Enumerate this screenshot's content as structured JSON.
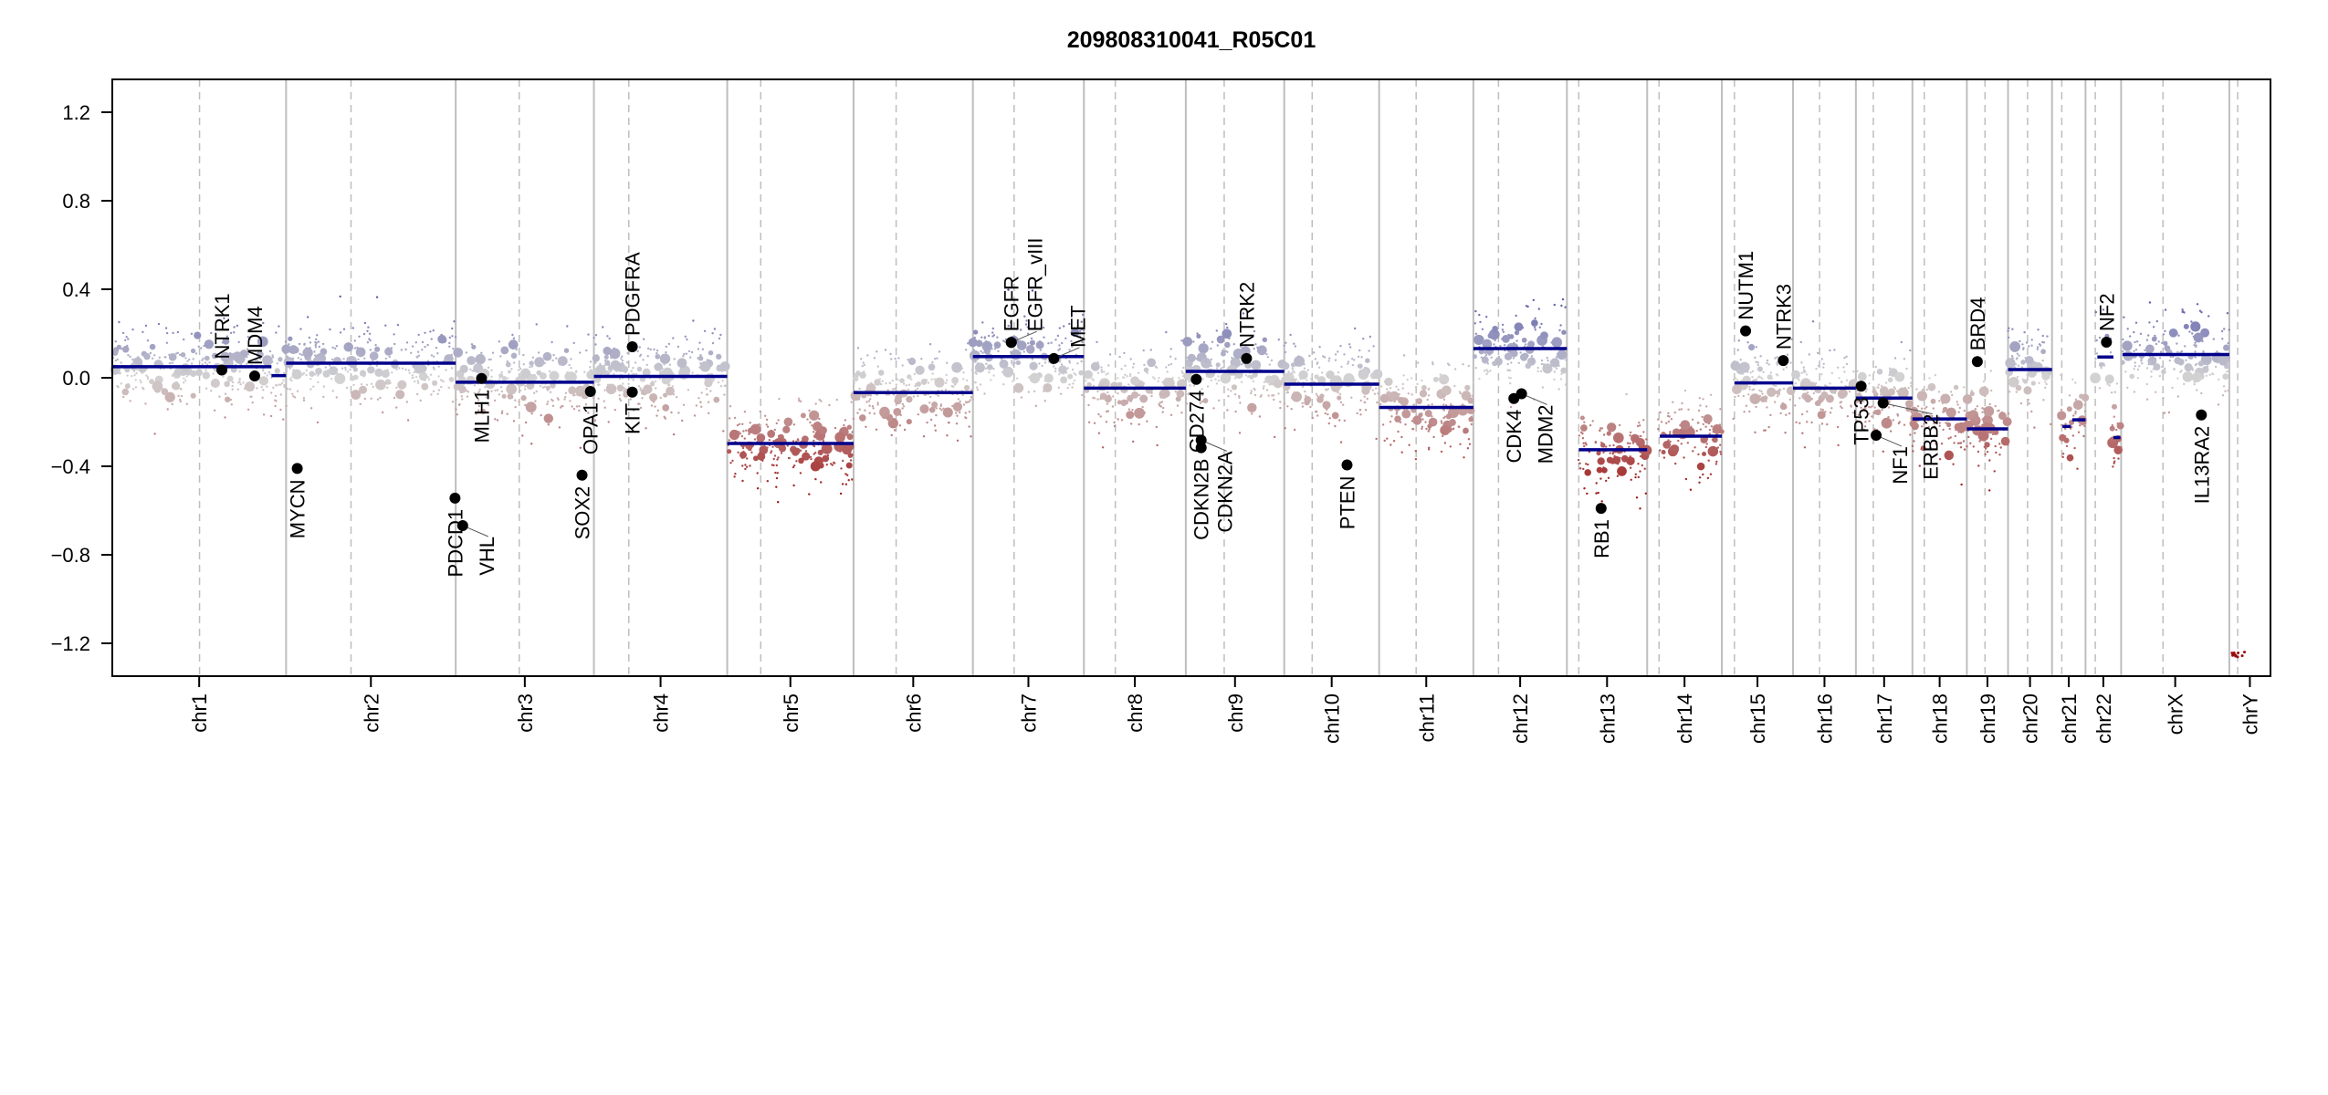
{
  "chart_data": {
    "type": "scatter",
    "title": "209808310041_R05C01",
    "xlabel": "",
    "ylabel": "",
    "ylim": [
      -1.35,
      1.35
    ],
    "yticks": [
      "-1.2",
      "-0.8",
      "-0.4",
      "0.0",
      "0.4",
      "0.8",
      "1.2"
    ],
    "grid": false,
    "colors": {
      "gain": "#3a3aa0",
      "neutral": "#d3d3d3",
      "loss": "#9b0c0c",
      "segment": "#00008b",
      "gene_marker": "#000000",
      "chrom_border": "#bebebe",
      "centromere": "#bebebe"
    },
    "chromosomes": [
      {
        "name": "chr1",
        "length_mb": 249,
        "centromere_mb": 125
      },
      {
        "name": "chr2",
        "length_mb": 243,
        "centromere_mb": 93
      },
      {
        "name": "chr3",
        "length_mb": 198,
        "centromere_mb": 91
      },
      {
        "name": "chr4",
        "length_mb": 191,
        "centromere_mb": 50
      },
      {
        "name": "chr5",
        "length_mb": 181,
        "centromere_mb": 48
      },
      {
        "name": "chr6",
        "length_mb": 171,
        "centromere_mb": 61
      },
      {
        "name": "chr7",
        "length_mb": 159,
        "centromere_mb": 59
      },
      {
        "name": "chr8",
        "length_mb": 146,
        "centromere_mb": 45
      },
      {
        "name": "chr9",
        "length_mb": 141,
        "centromere_mb": 55
      },
      {
        "name": "chr10",
        "length_mb": 136,
        "centromere_mb": 40
      },
      {
        "name": "chr11",
        "length_mb": 135,
        "centromere_mb": 53
      },
      {
        "name": "chr12",
        "length_mb": 134,
        "centromere_mb": 36
      },
      {
        "name": "chr13",
        "length_mb": 115,
        "centromere_mb": 17
      },
      {
        "name": "chr14",
        "length_mb": 107,
        "centromere_mb": 17
      },
      {
        "name": "chr15",
        "length_mb": 102,
        "centromere_mb": 18
      },
      {
        "name": "chr16",
        "length_mb": 90,
        "centromere_mb": 38
      },
      {
        "name": "chr17",
        "length_mb": 81,
        "centromere_mb": 25
      },
      {
        "name": "chr18",
        "length_mb": 78,
        "centromere_mb": 17
      },
      {
        "name": "chr19",
        "length_mb": 59,
        "centromere_mb": 26
      },
      {
        "name": "chr20",
        "length_mb": 63,
        "centromere_mb": 28
      },
      {
        "name": "chr21",
        "length_mb": 48,
        "centromere_mb": 14
      },
      {
        "name": "chr22",
        "length_mb": 51,
        "centromere_mb": 14
      },
      {
        "name": "chrX",
        "length_mb": 155,
        "centromere_mb": 60
      },
      {
        "name": "chrY",
        "length_mb": 59,
        "centromere_mb": 12
      }
    ],
    "segments": [
      {
        "chr": "chr1",
        "start_mb": 1,
        "end_mb": 228,
        "value": 0.05
      },
      {
        "chr": "chr1",
        "start_mb": 228,
        "end_mb": 249,
        "value": 0.01
      },
      {
        "chr": "chr2",
        "start_mb": 0,
        "end_mb": 243,
        "value": 0.066
      },
      {
        "chr": "chr3",
        "start_mb": 0,
        "end_mb": 198,
        "value": -0.02
      },
      {
        "chr": "chr4",
        "start_mb": 0,
        "end_mb": 191,
        "value": 0.006
      },
      {
        "chr": "chr5",
        "start_mb": 0,
        "end_mb": 181,
        "value": -0.297
      },
      {
        "chr": "chr6",
        "start_mb": 0,
        "end_mb": 171,
        "value": -0.067
      },
      {
        "chr": "chr7",
        "start_mb": 0,
        "end_mb": 159,
        "value": 0.096
      },
      {
        "chr": "chr8",
        "start_mb": 0,
        "end_mb": 146,
        "value": -0.047
      },
      {
        "chr": "chr9",
        "start_mb": 0,
        "end_mb": 141,
        "value": 0.029
      },
      {
        "chr": "chr10",
        "start_mb": 0,
        "end_mb": 136,
        "value": -0.029
      },
      {
        "chr": "chr11",
        "start_mb": 0,
        "end_mb": 135,
        "value": -0.134
      },
      {
        "chr": "chr12",
        "start_mb": 0,
        "end_mb": 134,
        "value": 0.132
      },
      {
        "chr": "chr13",
        "start_mb": 17,
        "end_mb": 115,
        "value": -0.325
      },
      {
        "chr": "chr14",
        "start_mb": 18,
        "end_mb": 107,
        "value": -0.264
      },
      {
        "chr": "chr15",
        "start_mb": 18,
        "end_mb": 102,
        "value": -0.023
      },
      {
        "chr": "chr16",
        "start_mb": 0,
        "end_mb": 90,
        "value": -0.047
      },
      {
        "chr": "chr17",
        "start_mb": 0,
        "end_mb": 81,
        "value": -0.092
      },
      {
        "chr": "chr18",
        "start_mb": 0,
        "end_mb": 78,
        "value": -0.186
      },
      {
        "chr": "chr19",
        "start_mb": 0,
        "end_mb": 59,
        "value": -0.231
      },
      {
        "chr": "chr20",
        "start_mb": 0,
        "end_mb": 63,
        "value": 0.037
      },
      {
        "chr": "chr21",
        "start_mb": 15,
        "end_mb": 27,
        "value": -0.22
      },
      {
        "chr": "chr21",
        "start_mb": 29,
        "end_mb": 48,
        "value": -0.19
      },
      {
        "chr": "chr22",
        "start_mb": 17,
        "end_mb": 40,
        "value": 0.094
      },
      {
        "chr": "chr22",
        "start_mb": 40,
        "end_mb": 50,
        "value": -0.27
      },
      {
        "chr": "chrX",
        "start_mb": 2,
        "end_mb": 155,
        "value": 0.105
      }
    ],
    "genes": [
      {
        "name": "NTRK1",
        "chr": "chr1",
        "pos_mb": 157,
        "value": 0.035
      },
      {
        "name": "MDM4",
        "chr": "chr1",
        "pos_mb": 204,
        "value": 0.008
      },
      {
        "name": "MYCN",
        "chr": "chr2",
        "pos_mb": 16,
        "value": -0.41
      },
      {
        "name": "PDCD1",
        "chr": "chr2",
        "pos_mb": 242,
        "value": -0.544
      },
      {
        "name": "VHL",
        "chr": "chr3",
        "pos_mb": 10,
        "value": -0.668
      },
      {
        "name": "MLH1",
        "chr": "chr3",
        "pos_mb": 37,
        "value": -0.003
      },
      {
        "name": "SOX2",
        "chr": "chr3",
        "pos_mb": 181,
        "value": -0.44
      },
      {
        "name": "OPA1",
        "chr": "chr3",
        "pos_mb": 193,
        "value": -0.062
      },
      {
        "name": "PDGFRA",
        "chr": "chr4",
        "pos_mb": 55,
        "value": 0.14
      },
      {
        "name": "KIT",
        "chr": "chr4",
        "pos_mb": 55,
        "value": -0.065
      },
      {
        "name": "EGFR",
        "chr": "chr7",
        "pos_mb": 55,
        "value": 0.16
      },
      {
        "name": "EGFR_vIII",
        "chr": "chr7",
        "pos_mb": 55,
        "value": 0.16
      },
      {
        "name": "MET",
        "chr": "chr7",
        "pos_mb": 116,
        "value": 0.087
      },
      {
        "name": "CD274",
        "chr": "chr9",
        "pos_mb": 15,
        "value": -0.007
      },
      {
        "name": "CDKN2A",
        "chr": "chr9",
        "pos_mb": 22,
        "value": -0.282
      },
      {
        "name": "CDKN2B",
        "chr": "chr9",
        "pos_mb": 22,
        "value": -0.316
      },
      {
        "name": "NTRK2",
        "chr": "chr9",
        "pos_mb": 87,
        "value": 0.087
      },
      {
        "name": "PTEN",
        "chr": "chr10",
        "pos_mb": 90,
        "value": -0.394
      },
      {
        "name": "CDK4",
        "chr": "chr12",
        "pos_mb": 58,
        "value": -0.094
      },
      {
        "name": "MDM2",
        "chr": "chr12",
        "pos_mb": 69,
        "value": -0.072
      },
      {
        "name": "RB1",
        "chr": "chr13",
        "pos_mb": 49,
        "value": -0.59
      },
      {
        "name": "NUTM1",
        "chr": "chr15",
        "pos_mb": 34,
        "value": 0.212
      },
      {
        "name": "NTRK3",
        "chr": "chr15",
        "pos_mb": 88,
        "value": 0.078
      },
      {
        "name": "TP53",
        "chr": "chr17",
        "pos_mb": 7.5,
        "value": -0.038
      },
      {
        "name": "NF1",
        "chr": "chr17",
        "pos_mb": 29,
        "value": -0.26
      },
      {
        "name": "ERBB2",
        "chr": "chr17",
        "pos_mb": 39,
        "value": -0.114
      },
      {
        "name": "BRD4",
        "chr": "chr19",
        "pos_mb": 15,
        "value": 0.073
      },
      {
        "name": "NF2",
        "chr": "chr22",
        "pos_mb": 30,
        "value": 0.161
      },
      {
        "name": "IL13RA2",
        "chr": "chrX",
        "pos_mb": 115,
        "value": -0.168
      }
    ]
  }
}
